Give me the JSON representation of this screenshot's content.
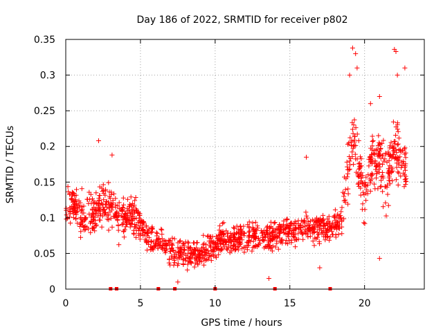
{
  "chart_data": {
    "type": "scatter",
    "title": "Day 186 of 2022, SRMTID for receiver p802",
    "xlabel": "GPS time / hours",
    "ylabel": "SRMTID / TECUs",
    "xlim": [
      0,
      24
    ],
    "ylim": [
      0,
      0.35
    ],
    "grid": true,
    "marker": "+",
    "color": "#ff0000",
    "x_ticks": [
      0,
      5,
      10,
      15,
      20
    ],
    "x_tick_labels": [
      "0",
      "5",
      "10",
      "15",
      "20"
    ],
    "y_ticks": [
      0,
      0.05,
      0.1,
      0.15,
      0.2,
      0.25,
      0.3,
      0.35
    ],
    "y_tick_labels": [
      "0",
      "0.05",
      "0.1",
      "0.15",
      "0.2",
      "0.25",
      "0.3",
      "0.35"
    ],
    "series": [
      {
        "name": "SRMTID",
        "trend": [
          {
            "x": 0.0,
            "y": 0.115
          },
          {
            "x": 0.5,
            "y": 0.12
          },
          {
            "x": 1.0,
            "y": 0.105
          },
          {
            "x": 1.5,
            "y": 0.105
          },
          {
            "x": 2.0,
            "y": 0.11
          },
          {
            "x": 2.5,
            "y": 0.12
          },
          {
            "x": 3.0,
            "y": 0.115
          },
          {
            "x": 3.5,
            "y": 0.1
          },
          {
            "x": 4.0,
            "y": 0.1
          },
          {
            "x": 4.5,
            "y": 0.105
          },
          {
            "x": 5.0,
            "y": 0.09
          },
          {
            "x": 5.5,
            "y": 0.075
          },
          {
            "x": 6.0,
            "y": 0.07
          },
          {
            "x": 6.5,
            "y": 0.065
          },
          {
            "x": 7.0,
            "y": 0.055
          },
          {
            "x": 7.5,
            "y": 0.05
          },
          {
            "x": 8.0,
            "y": 0.05
          },
          {
            "x": 8.5,
            "y": 0.05
          },
          {
            "x": 9.0,
            "y": 0.05
          },
          {
            "x": 9.5,
            "y": 0.055
          },
          {
            "x": 10.0,
            "y": 0.06
          },
          {
            "x": 10.5,
            "y": 0.07
          },
          {
            "x": 11.0,
            "y": 0.07
          },
          {
            "x": 11.5,
            "y": 0.07
          },
          {
            "x": 12.0,
            "y": 0.07
          },
          {
            "x": 12.5,
            "y": 0.075
          },
          {
            "x": 13.0,
            "y": 0.075
          },
          {
            "x": 13.5,
            "y": 0.075
          },
          {
            "x": 14.0,
            "y": 0.075
          },
          {
            "x": 14.5,
            "y": 0.08
          },
          {
            "x": 15.0,
            "y": 0.08
          },
          {
            "x": 15.5,
            "y": 0.085
          },
          {
            "x": 16.0,
            "y": 0.085
          },
          {
            "x": 16.5,
            "y": 0.085
          },
          {
            "x": 17.0,
            "y": 0.085
          },
          {
            "x": 17.5,
            "y": 0.085
          },
          {
            "x": 18.0,
            "y": 0.09
          },
          {
            "x": 18.5,
            "y": 0.1
          },
          {
            "x": 18.8,
            "y": 0.15
          },
          {
            "x": 19.0,
            "y": 0.18
          },
          {
            "x": 19.3,
            "y": 0.21
          },
          {
            "x": 19.6,
            "y": 0.17
          },
          {
            "x": 20.0,
            "y": 0.13
          },
          {
            "x": 20.5,
            "y": 0.19
          },
          {
            "x": 21.0,
            "y": 0.18
          },
          {
            "x": 21.5,
            "y": 0.15
          },
          {
            "x": 22.0,
            "y": 0.2
          },
          {
            "x": 22.5,
            "y": 0.18
          },
          {
            "x": 22.8,
            "y": 0.17
          }
        ],
        "outliers": [
          {
            "x": 19.2,
            "y": 0.338
          },
          {
            "x": 19.4,
            "y": 0.33
          },
          {
            "x": 22.0,
            "y": 0.336
          },
          {
            "x": 22.1,
            "y": 0.333
          },
          {
            "x": 22.7,
            "y": 0.31
          },
          {
            "x": 19.0,
            "y": 0.3
          },
          {
            "x": 19.5,
            "y": 0.31
          },
          {
            "x": 22.2,
            "y": 0.3
          },
          {
            "x": 21.0,
            "y": 0.27
          },
          {
            "x": 20.4,
            "y": 0.26
          },
          {
            "x": 2.2,
            "y": 0.208
          },
          {
            "x": 3.1,
            "y": 0.188
          },
          {
            "x": 16.1,
            "y": 0.185
          },
          {
            "x": 21.0,
            "y": 0.043
          },
          {
            "x": 7.5,
            "y": 0.01
          },
          {
            "x": 13.6,
            "y": 0.015
          },
          {
            "x": 17.0,
            "y": 0.03
          }
        ],
        "zero_points": [
          3.0,
          3.4,
          6.2,
          7.3,
          10.0,
          14.0,
          17.7
        ]
      }
    ]
  }
}
